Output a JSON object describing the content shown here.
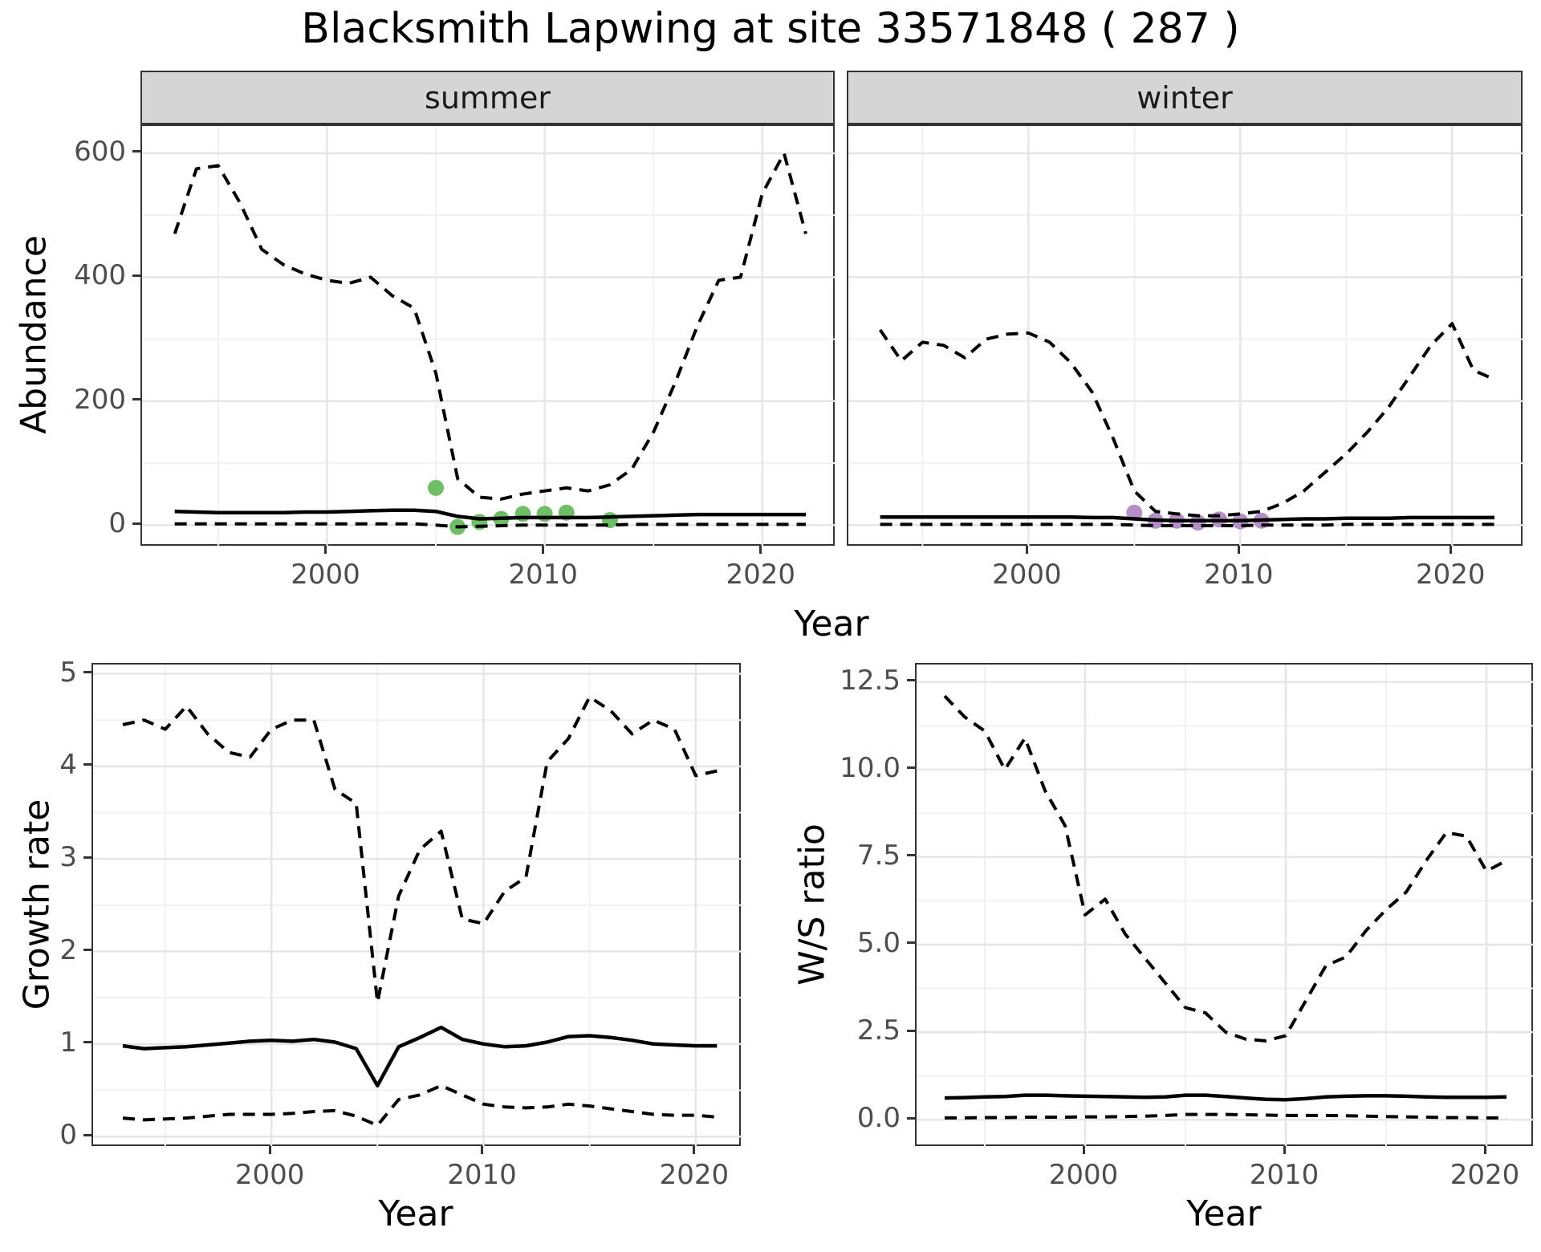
{
  "title": "Blacksmith Lapwing at site 33571848 ( 287 )",
  "colors": {
    "summer_point": "#6dbe64",
    "winter_point": "#b78fc8",
    "line": "#000000",
    "strip_bg": "#d6d6d6",
    "grid_major": "#e6e6e6",
    "grid_minor": "#f1f1f1",
    "axis_text": "#4d4d4d",
    "panel_border": "#333333"
  },
  "chart_data": [
    {
      "type": "line",
      "panel_name": "abundance-summer",
      "facet_label": "summer",
      "ylabel": "Abundance",
      "xlabel": "Year",
      "grid": true,
      "xlim": [
        1991.5,
        2023.4
      ],
      "ylim": [
        -36,
        644
      ],
      "x_ticks": [
        2000,
        2010,
        2020
      ],
      "x_tick_labels": [
        "2000",
        "2010",
        "2020"
      ],
      "y_ticks": [
        0,
        200,
        400,
        600
      ],
      "y_tick_labels": [
        "0",
        "200",
        "400",
        "600"
      ],
      "x": [
        1993,
        1994,
        1995,
        1996,
        1997,
        1998,
        1999,
        2000,
        2001,
        2002,
        2003,
        2004,
        2005,
        2006,
        2007,
        2008,
        2009,
        2010,
        2011,
        2012,
        2013,
        2014,
        2015,
        2016,
        2017,
        2018,
        2019,
        2020,
        2021,
        2022
      ],
      "series": [
        {
          "name": "upper-ci",
          "style": "dashed",
          "values": [
            470,
            575,
            580,
            520,
            445,
            420,
            405,
            395,
            390,
            400,
            370,
            350,
            245,
            75,
            45,
            42,
            50,
            55,
            60,
            55,
            65,
            90,
            150,
            230,
            320,
            395,
            400,
            535,
            600,
            470
          ]
        },
        {
          "name": "mean",
          "style": "solid",
          "values": [
            22,
            21,
            20,
            20,
            20,
            20,
            21,
            21,
            22,
            23,
            24,
            24,
            22,
            14,
            10,
            11,
            12,
            12,
            12,
            12,
            13,
            14,
            15,
            16,
            17,
            17,
            17,
            17,
            17,
            17
          ]
        },
        {
          "name": "lower-ci",
          "style": "dashed",
          "values": [
            2,
            2,
            2,
            2,
            2,
            2,
            2,
            2,
            2,
            2,
            2,
            2,
            0,
            -3,
            -2,
            -1,
            0,
            0,
            0,
            0,
            0,
            1,
            1,
            1,
            1,
            1,
            1,
            1,
            1,
            1
          ]
        }
      ],
      "points": {
        "name": "observed-counts-summer",
        "color": "#6dbe64",
        "x": [
          2005,
          2006,
          2007,
          2008,
          2009,
          2010,
          2011,
          2013
        ],
        "y": [
          60,
          -3,
          5,
          10,
          18,
          18,
          20,
          8
        ]
      }
    },
    {
      "type": "line",
      "panel_name": "abundance-winter",
      "facet_label": "winter",
      "ylabel": "Abundance",
      "xlabel": "Year",
      "grid": true,
      "xlim": [
        1991.5,
        2023.4
      ],
      "ylim": [
        -36,
        644
      ],
      "x_ticks": [
        2000,
        2010,
        2020
      ],
      "x_tick_labels": [
        "2000",
        "2010",
        "2020"
      ],
      "y_ticks": [
        0,
        200,
        400,
        600
      ],
      "y_tick_labels": [
        "0",
        "200",
        "400",
        "600"
      ],
      "x": [
        1993,
        1994,
        1995,
        1996,
        1997,
        1998,
        1999,
        2000,
        2001,
        2002,
        2003,
        2004,
        2005,
        2006,
        2007,
        2008,
        2009,
        2010,
        2011,
        2012,
        2013,
        2014,
        2015,
        2016,
        2017,
        2018,
        2019,
        2020,
        2021,
        2022
      ],
      "series": [
        {
          "name": "upper-ci",
          "style": "dashed",
          "values": [
            315,
            265,
            295,
            290,
            270,
            300,
            308,
            310,
            295,
            262,
            215,
            140,
            55,
            22,
            18,
            15,
            15,
            18,
            22,
            35,
            55,
            85,
            115,
            150,
            190,
            240,
            290,
            325,
            250,
            235
          ]
        },
        {
          "name": "mean",
          "style": "solid",
          "values": [
            13,
            13,
            13,
            13,
            13,
            13,
            13,
            13,
            13,
            13,
            12,
            12,
            10,
            8,
            7,
            7,
            7,
            7,
            8,
            9,
            10,
            10,
            11,
            11,
            11,
            12,
            12,
            12,
            12,
            12
          ]
        },
        {
          "name": "lower-ci",
          "style": "dashed",
          "values": [
            1,
            1,
            1,
            1,
            1,
            1,
            1,
            1,
            1,
            1,
            1,
            1,
            0,
            -1,
            -1,
            -1,
            -1,
            -1,
            0,
            0,
            0,
            0,
            1,
            1,
            1,
            1,
            1,
            1,
            1,
            1
          ]
        }
      ],
      "points": {
        "name": "observed-counts-winter",
        "color": "#b78fc8",
        "x": [
          2005,
          2006,
          2007,
          2008,
          2009,
          2010,
          2011
        ],
        "y": [
          20,
          7,
          7,
          4,
          9,
          6,
          7
        ]
      }
    },
    {
      "type": "line",
      "panel_name": "growth-rate",
      "facet_label": "",
      "ylabel": "Growth rate",
      "xlabel": "Year",
      "grid": true,
      "xlim": [
        1991.6,
        2022.2
      ],
      "ylim": [
        -0.12,
        5.1
      ],
      "x_ticks": [
        2000,
        2010,
        2020
      ],
      "x_tick_labels": [
        "2000",
        "2010",
        "2020"
      ],
      "y_ticks": [
        0,
        1,
        2,
        3,
        4,
        5
      ],
      "y_tick_labels": [
        "0",
        "1",
        "2",
        "3",
        "4",
        "5"
      ],
      "x": [
        1993,
        1994,
        1995,
        1996,
        1997,
        1998,
        1999,
        2000,
        2001,
        2002,
        2003,
        2004,
        2005,
        2006,
        2007,
        2008,
        2009,
        2010,
        2011,
        2012,
        2013,
        2014,
        2015,
        2016,
        2017,
        2018,
        2019,
        2020,
        2021
      ],
      "series": [
        {
          "name": "upper-ci",
          "style": "dashed",
          "values": [
            4.45,
            4.5,
            4.4,
            4.65,
            4.35,
            4.15,
            4.1,
            4.4,
            4.5,
            4.5,
            3.75,
            3.6,
            1.45,
            2.6,
            3.1,
            3.3,
            2.35,
            2.3,
            2.65,
            2.8,
            4.05,
            4.3,
            4.75,
            4.6,
            4.35,
            4.5,
            4.4,
            3.9,
            3.95
          ]
        },
        {
          "name": "mean",
          "style": "solid",
          "values": [
            0.98,
            0.95,
            0.96,
            0.97,
            0.99,
            1.01,
            1.03,
            1.04,
            1.03,
            1.05,
            1.02,
            0.95,
            0.55,
            0.97,
            1.07,
            1.18,
            1.05,
            1.0,
            0.97,
            0.98,
            1.02,
            1.08,
            1.09,
            1.07,
            1.04,
            1.0,
            0.99,
            0.98,
            0.98
          ]
        },
        {
          "name": "lower-ci",
          "style": "dashed",
          "values": [
            0.2,
            0.18,
            0.19,
            0.2,
            0.22,
            0.24,
            0.24,
            0.24,
            0.25,
            0.27,
            0.28,
            0.22,
            0.12,
            0.4,
            0.45,
            0.55,
            0.45,
            0.35,
            0.32,
            0.31,
            0.32,
            0.35,
            0.33,
            0.3,
            0.27,
            0.24,
            0.23,
            0.23,
            0.21
          ]
        }
      ],
      "points": null
    },
    {
      "type": "line",
      "panel_name": "ws-ratio",
      "facet_label": "",
      "ylabel": "W/S ratio",
      "xlabel": "Year",
      "grid": true,
      "xlim": [
        1991.6,
        2022.4
      ],
      "ylim": [
        -0.8,
        13.0
      ],
      "x_ticks": [
        2000,
        2010,
        2020
      ],
      "x_tick_labels": [
        "2000",
        "2010",
        "2020"
      ],
      "y_ticks": [
        0,
        2.5,
        5,
        7.5,
        10,
        12.5
      ],
      "y_tick_labels": [
        "0.0",
        "2.5",
        "5.0",
        "7.5",
        "10.0",
        "12.5"
      ],
      "x": [
        1993,
        1994,
        1995,
        1996,
        1997,
        1998,
        1999,
        2000,
        2001,
        2002,
        2003,
        2004,
        2005,
        2006,
        2007,
        2008,
        2009,
        2010,
        2011,
        2012,
        2013,
        2014,
        2015,
        2016,
        2017,
        2018,
        2019,
        2020,
        2021
      ],
      "series": [
        {
          "name": "upper-ci",
          "style": "dashed",
          "values": [
            12.1,
            11.5,
            11.1,
            10.0,
            10.9,
            9.4,
            8.4,
            5.85,
            6.3,
            5.3,
            4.6,
            3.9,
            3.2,
            3.05,
            2.5,
            2.3,
            2.25,
            2.4,
            3.4,
            4.4,
            4.65,
            5.4,
            6.0,
            6.5,
            7.4,
            8.2,
            8.1,
            7.1,
            7.4
          ]
        },
        {
          "name": "mean",
          "style": "solid",
          "values": [
            0.62,
            0.63,
            0.65,
            0.66,
            0.7,
            0.7,
            0.68,
            0.67,
            0.66,
            0.65,
            0.64,
            0.65,
            0.7,
            0.7,
            0.66,
            0.62,
            0.58,
            0.57,
            0.6,
            0.65,
            0.67,
            0.68,
            0.68,
            0.67,
            0.65,
            0.64,
            0.64,
            0.64,
            0.65
          ]
        },
        {
          "name": "lower-ci",
          "style": "dashed",
          "values": [
            0.05,
            0.05,
            0.06,
            0.06,
            0.07,
            0.07,
            0.07,
            0.08,
            0.08,
            0.09,
            0.1,
            0.12,
            0.15,
            0.15,
            0.15,
            0.14,
            0.13,
            0.12,
            0.12,
            0.12,
            0.11,
            0.1,
            0.09,
            0.08,
            0.07,
            0.06,
            0.06,
            0.05,
            0.05
          ]
        }
      ],
      "points": null
    }
  ]
}
